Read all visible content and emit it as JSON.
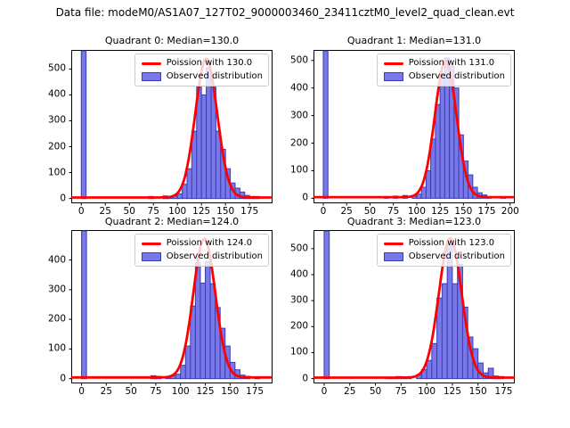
{
  "figure": {
    "suptitle": "Data file: modeM0/AS1A07_127T02_9000003460_23411cztM0_level2_quad_clean.evt"
  },
  "colors": {
    "hist_fill": "#7878e8",
    "hist_edge": "#3c3cb4",
    "curve": "#ff0000",
    "axis": "#000000",
    "legend_border": "#cccccc"
  },
  "chart_data": [
    {
      "type": "bar",
      "subtype": "histogram_with_fit_line",
      "quadrant": 0,
      "title": "Quadrant 0: Median=130.0",
      "median": 130.0,
      "legend": [
        {
          "label": "Poission with 130.0",
          "swatch": "red-line"
        },
        {
          "label": "Observed distribution",
          "swatch": "blue-patch"
        }
      ],
      "poisson_lambda": 130.0,
      "curve_apex": 540,
      "curve_baseline": 4,
      "bin_width": 5,
      "bars_note": "pairs of [bin_start, count]; null count = spike clipped at plot top",
      "bars": [
        [
          0,
          null
        ],
        [
          70,
          8
        ],
        [
          85,
          10
        ],
        [
          90,
          6
        ],
        [
          95,
          10
        ],
        [
          100,
          18
        ],
        [
          105,
          55
        ],
        [
          110,
          115
        ],
        [
          115,
          260
        ],
        [
          120,
          430
        ],
        [
          125,
          400
        ],
        [
          130,
          505
        ],
        [
          135,
          430
        ],
        [
          140,
          260
        ],
        [
          145,
          190
        ],
        [
          150,
          115
        ],
        [
          155,
          60
        ],
        [
          160,
          40
        ],
        [
          165,
          25
        ],
        [
          170,
          12
        ],
        [
          175,
          8
        ],
        [
          180,
          8
        ]
      ],
      "xlim": [
        -9.5,
        198
      ],
      "ylim": [
        -15,
        570
      ],
      "xticks": [
        0,
        25,
        50,
        75,
        100,
        125,
        150,
        175
      ],
      "yticks": [
        0,
        100,
        200,
        300,
        400,
        500
      ],
      "grid": false,
      "legend_position": "upper right"
    },
    {
      "type": "bar",
      "subtype": "histogram_with_fit_line",
      "quadrant": 1,
      "title": "Quadrant 1: Median=131.0",
      "median": 131.0,
      "legend": [
        {
          "label": "Poission with 131.0",
          "swatch": "red-line"
        },
        {
          "label": "Observed distribution",
          "swatch": "blue-patch"
        }
      ],
      "poisson_lambda": 131.0,
      "curve_apex": 500,
      "curve_baseline": 4,
      "bin_width": 5,
      "bars": [
        [
          0,
          null
        ],
        [
          65,
          5
        ],
        [
          75,
          8
        ],
        [
          85,
          10
        ],
        [
          95,
          8
        ],
        [
          100,
          15
        ],
        [
          105,
          40
        ],
        [
          110,
          100
        ],
        [
          115,
          215
        ],
        [
          120,
          340
        ],
        [
          125,
          450
        ],
        [
          130,
          510
        ],
        [
          135,
          480
        ],
        [
          140,
          400
        ],
        [
          145,
          230
        ],
        [
          150,
          135
        ],
        [
          155,
          85
        ],
        [
          160,
          40
        ],
        [
          165,
          20
        ],
        [
          170,
          12
        ],
        [
          175,
          6
        ],
        [
          190,
          5
        ]
      ],
      "xlim": [
        -9.5,
        204
      ],
      "ylim": [
        -15,
        535
      ],
      "xticks": [
        0,
        25,
        50,
        75,
        100,
        125,
        150,
        175,
        200
      ],
      "yticks": [
        0,
        100,
        200,
        300,
        400,
        500
      ],
      "grid": false,
      "legend_position": "upper right"
    },
    {
      "type": "bar",
      "subtype": "histogram_with_fit_line",
      "quadrant": 2,
      "title": "Quadrant 2: Median=124.0",
      "median": 124.0,
      "legend": [
        {
          "label": "Poission with 124.0",
          "swatch": "red-line"
        },
        {
          "label": "Observed distribution",
          "swatch": "blue-patch"
        }
      ],
      "poisson_lambda": 124.0,
      "curve_apex": 472,
      "curve_baseline": 4,
      "bin_width": 5,
      "bars": [
        [
          0,
          null
        ],
        [
          70,
          10
        ],
        [
          75,
          8
        ],
        [
          85,
          8
        ],
        [
          90,
          10
        ],
        [
          95,
          15
        ],
        [
          100,
          45
        ],
        [
          105,
          110
        ],
        [
          110,
          245
        ],
        [
          115,
          390
        ],
        [
          120,
          322
        ],
        [
          125,
          395
        ],
        [
          130,
          320
        ],
        [
          135,
          240
        ],
        [
          140,
          170
        ],
        [
          145,
          110
        ],
        [
          150,
          55
        ],
        [
          155,
          30
        ],
        [
          160,
          12
        ],
        [
          165,
          8
        ],
        [
          175,
          6
        ]
      ],
      "xlim": [
        -9.5,
        192
      ],
      "ylim": [
        -13,
        498
      ],
      "xticks": [
        0,
        25,
        50,
        75,
        100,
        125,
        150,
        175
      ],
      "yticks": [
        0,
        100,
        200,
        300,
        400
      ],
      "grid": false,
      "legend_position": "upper right"
    },
    {
      "type": "bar",
      "subtype": "histogram_with_fit_line",
      "quadrant": 3,
      "title": "Quadrant 3: Median=123.0",
      "median": 123.0,
      "legend": [
        {
          "label": "Poission with 123.0",
          "swatch": "red-line"
        },
        {
          "label": "Observed distribution",
          "swatch": "blue-patch"
        }
      ],
      "poisson_lambda": 123.0,
      "curve_apex": 540,
      "curve_baseline": 4,
      "bin_width": 5,
      "bars": [
        [
          0,
          null
        ],
        [
          60,
          5
        ],
        [
          65,
          5
        ],
        [
          70,
          8
        ],
        [
          75,
          5
        ],
        [
          80,
          5
        ],
        [
          90,
          15
        ],
        [
          95,
          35
        ],
        [
          100,
          70
        ],
        [
          105,
          135
        ],
        [
          110,
          310
        ],
        [
          115,
          365
        ],
        [
          120,
          515
        ],
        [
          125,
          365
        ],
        [
          130,
          440
        ],
        [
          135,
          275
        ],
        [
          140,
          160
        ],
        [
          145,
          115
        ],
        [
          150,
          60
        ],
        [
          155,
          22
        ],
        [
          160,
          40
        ],
        [
          165,
          10
        ],
        [
          170,
          8
        ]
      ],
      "xlim": [
        -9.5,
        185
      ],
      "ylim": [
        -15,
        568
      ],
      "xticks": [
        0,
        25,
        50,
        75,
        100,
        125,
        150,
        175
      ],
      "yticks": [
        0,
        100,
        200,
        300,
        400,
        500
      ],
      "grid": false,
      "legend_position": "upper right"
    }
  ]
}
